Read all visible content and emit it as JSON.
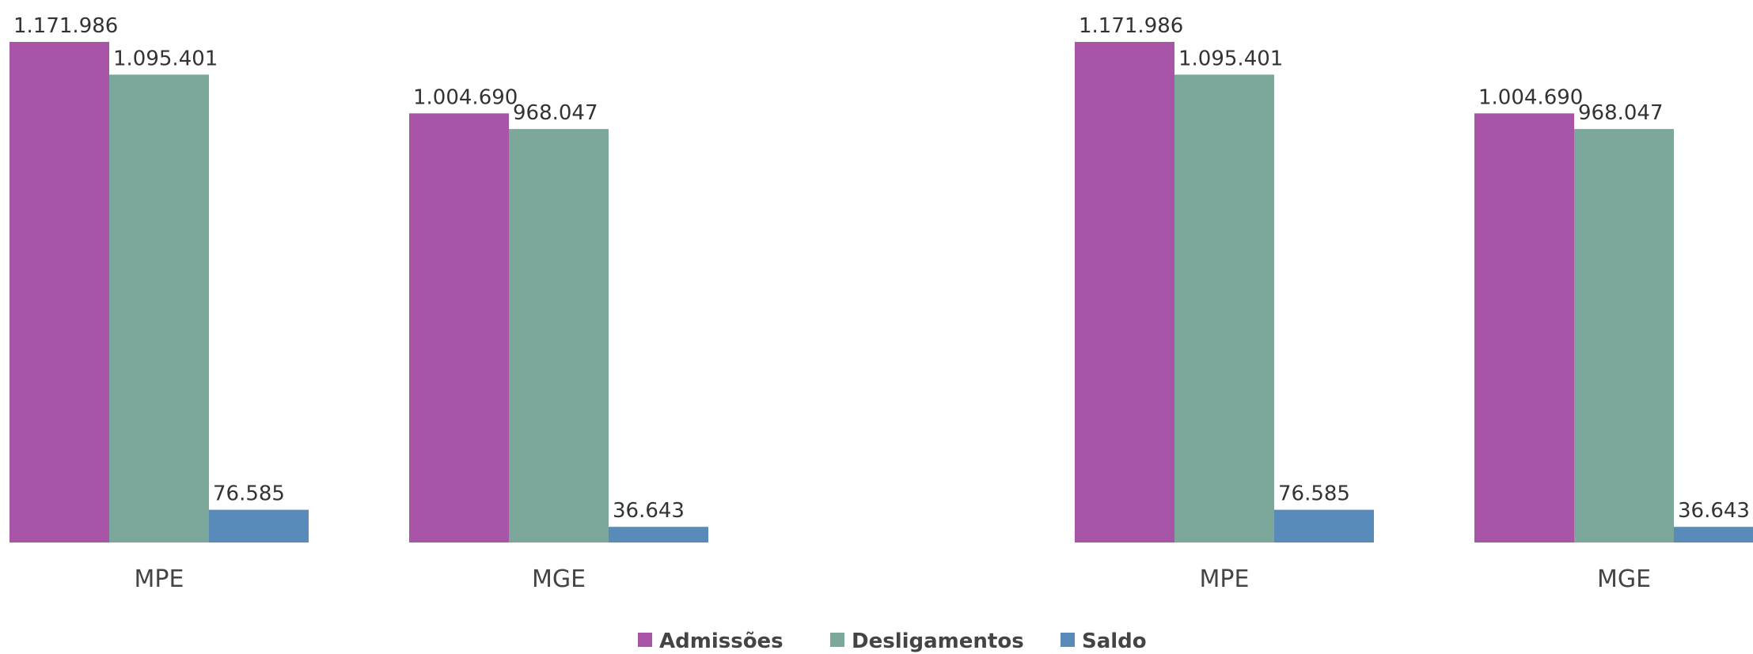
{
  "chart_data": [
    {
      "type": "bar",
      "categories": [
        "MPE",
        "MGE"
      ],
      "series": [
        {
          "name": "Admissões",
          "values": [
            1171986,
            1004690
          ],
          "labels": [
            "1.171.986",
            "1.004.690"
          ],
          "color": "#a855a8"
        },
        {
          "name": "Desligamentos",
          "values": [
            1095401,
            968047
          ],
          "labels": [
            "1.095.401",
            "968.047"
          ],
          "color": "#7ca89c"
        },
        {
          "name": "Saldo",
          "values": [
            76585,
            36643
          ],
          "labels": [
            "76.585",
            "36.643"
          ],
          "color": "#588bba"
        }
      ],
      "ylim": [
        0,
        1171986
      ],
      "grid": false,
      "legend": "bottom"
    },
    {
      "type": "bar",
      "categories": [
        "MPE",
        "MGE"
      ],
      "series": [
        {
          "name": "Admissões",
          "values": [
            1171986,
            1004690
          ],
          "labels": [
            "1.171.986",
            "1.004.690"
          ],
          "color": "#a855a8"
        },
        {
          "name": "Desligamentos",
          "values": [
            1095401,
            968047
          ],
          "labels": [
            "1.095.401",
            "968.047"
          ],
          "color": "#7ca89c"
        },
        {
          "name": "Saldo",
          "values": [
            76585,
            36643
          ],
          "labels": [
            "76.585",
            "36.643"
          ],
          "color": "#588bba"
        }
      ],
      "ylim": [
        0,
        1171986
      ],
      "grid": false,
      "legend": "bottom"
    }
  ],
  "legend": {
    "items": [
      {
        "label": "Admissões",
        "color": "#a855a8"
      },
      {
        "label": "Desligamentos",
        "color": "#7ca89c"
      },
      {
        "label": "Saldo",
        "color": "#588bba"
      }
    ]
  }
}
